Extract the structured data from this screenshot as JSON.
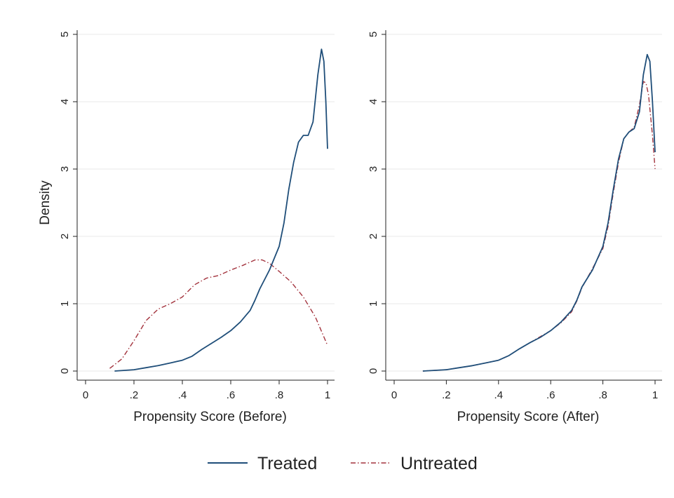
{
  "colors": {
    "treated": "#1f4e79",
    "untreated": "#a3333d",
    "grid": "#e8e8e8",
    "axis": "#222222"
  },
  "legend": {
    "placement": "bottom",
    "items": [
      {
        "label": "Treated",
        "style": "solid",
        "color": "#1f4e79"
      },
      {
        "label": "Untreated",
        "style": "dash-dot",
        "color": "#a3333d"
      }
    ]
  },
  "chart_data": [
    {
      "type": "line",
      "xlabel": "Propensity Score (Before)",
      "ylabel": "Density",
      "xlim": [
        0,
        1
      ],
      "ylim": [
        0,
        5
      ],
      "xticks": [
        {
          "v": 0,
          "label": "0"
        },
        {
          "v": 0.2,
          "label": ".2"
        },
        {
          "v": 0.4,
          "label": ".4"
        },
        {
          "v": 0.6,
          "label": ".6"
        },
        {
          "v": 0.8,
          "label": ".8"
        },
        {
          "v": 1,
          "label": "1"
        }
      ],
      "yticks": [
        {
          "v": 0,
          "label": "0"
        },
        {
          "v": 1,
          "label": "1"
        },
        {
          "v": 2,
          "label": "2"
        },
        {
          "v": 3,
          "label": "3"
        },
        {
          "v": 4,
          "label": "4"
        },
        {
          "v": 5,
          "label": "5"
        }
      ],
      "grid": "horizontal",
      "series": [
        {
          "name": "Treated",
          "style": "solid",
          "color": "#1f4e79",
          "points": [
            [
              0.12,
              0.0
            ],
            [
              0.2,
              0.02
            ],
            [
              0.25,
              0.05
            ],
            [
              0.3,
              0.08
            ],
            [
              0.35,
              0.12
            ],
            [
              0.4,
              0.16
            ],
            [
              0.44,
              0.22
            ],
            [
              0.48,
              0.32
            ],
            [
              0.52,
              0.41
            ],
            [
              0.56,
              0.5
            ],
            [
              0.6,
              0.6
            ],
            [
              0.64,
              0.73
            ],
            [
              0.68,
              0.9
            ],
            [
              0.7,
              1.05
            ],
            [
              0.72,
              1.22
            ],
            [
              0.76,
              1.5
            ],
            [
              0.8,
              1.85
            ],
            [
              0.82,
              2.2
            ],
            [
              0.84,
              2.7
            ],
            [
              0.86,
              3.1
            ],
            [
              0.88,
              3.4
            ],
            [
              0.9,
              3.5
            ],
            [
              0.92,
              3.5
            ],
            [
              0.94,
              3.7
            ],
            [
              0.96,
              4.4
            ],
            [
              0.975,
              4.78
            ],
            [
              0.985,
              4.6
            ],
            [
              0.993,
              4.0
            ],
            [
              1.0,
              3.3
            ]
          ]
        },
        {
          "name": "Untreated",
          "style": "dash-dot",
          "color": "#a3333d",
          "points": [
            [
              0.1,
              0.04
            ],
            [
              0.15,
              0.18
            ],
            [
              0.2,
              0.45
            ],
            [
              0.25,
              0.75
            ],
            [
              0.3,
              0.92
            ],
            [
              0.35,
              1.0
            ],
            [
              0.4,
              1.1
            ],
            [
              0.45,
              1.28
            ],
            [
              0.5,
              1.38
            ],
            [
              0.55,
              1.42
            ],
            [
              0.6,
              1.5
            ],
            [
              0.65,
              1.57
            ],
            [
              0.7,
              1.65
            ],
            [
              0.73,
              1.65
            ],
            [
              0.76,
              1.6
            ],
            [
              0.8,
              1.48
            ],
            [
              0.85,
              1.32
            ],
            [
              0.9,
              1.1
            ],
            [
              0.95,
              0.8
            ],
            [
              1.0,
              0.38
            ]
          ]
        }
      ]
    },
    {
      "type": "line",
      "xlabel": "Propensity Score (After)",
      "ylabel": "",
      "xlim": [
        0,
        1
      ],
      "ylim": [
        0,
        5
      ],
      "xticks": [
        {
          "v": 0,
          "label": "0"
        },
        {
          "v": 0.2,
          "label": ".2"
        },
        {
          "v": 0.4,
          "label": ".4"
        },
        {
          "v": 0.6,
          "label": ".6"
        },
        {
          "v": 0.8,
          "label": ".8"
        },
        {
          "v": 1,
          "label": "1"
        }
      ],
      "yticks": [
        {
          "v": 0,
          "label": "0"
        },
        {
          "v": 1,
          "label": "1"
        },
        {
          "v": 2,
          "label": "2"
        },
        {
          "v": 3,
          "label": "3"
        },
        {
          "v": 4,
          "label": "4"
        },
        {
          "v": 5,
          "label": "5"
        }
      ],
      "grid": "horizontal",
      "series": [
        {
          "name": "Treated",
          "style": "solid",
          "color": "#1f4e79",
          "points": [
            [
              0.11,
              0.0
            ],
            [
              0.2,
              0.02
            ],
            [
              0.25,
              0.05
            ],
            [
              0.3,
              0.08
            ],
            [
              0.35,
              0.12
            ],
            [
              0.4,
              0.16
            ],
            [
              0.44,
              0.23
            ],
            [
              0.48,
              0.33
            ],
            [
              0.52,
              0.42
            ],
            [
              0.56,
              0.5
            ],
            [
              0.6,
              0.6
            ],
            [
              0.64,
              0.73
            ],
            [
              0.68,
              0.9
            ],
            [
              0.7,
              1.05
            ],
            [
              0.72,
              1.25
            ],
            [
              0.76,
              1.5
            ],
            [
              0.8,
              1.85
            ],
            [
              0.82,
              2.2
            ],
            [
              0.84,
              2.7
            ],
            [
              0.86,
              3.15
            ],
            [
              0.88,
              3.45
            ],
            [
              0.9,
              3.55
            ],
            [
              0.92,
              3.6
            ],
            [
              0.94,
              3.85
            ],
            [
              0.955,
              4.4
            ],
            [
              0.97,
              4.7
            ],
            [
              0.98,
              4.6
            ],
            [
              0.99,
              4.0
            ],
            [
              1.0,
              3.25
            ]
          ]
        },
        {
          "name": "Untreated",
          "style": "dash-dot",
          "color": "#a3333d",
          "points": [
            [
              0.11,
              0.0
            ],
            [
              0.2,
              0.02
            ],
            [
              0.25,
              0.05
            ],
            [
              0.3,
              0.08
            ],
            [
              0.35,
              0.12
            ],
            [
              0.4,
              0.16
            ],
            [
              0.44,
              0.23
            ],
            [
              0.48,
              0.33
            ],
            [
              0.52,
              0.42
            ],
            [
              0.56,
              0.51
            ],
            [
              0.6,
              0.6
            ],
            [
              0.64,
              0.72
            ],
            [
              0.68,
              0.88
            ],
            [
              0.7,
              1.04
            ],
            [
              0.72,
              1.24
            ],
            [
              0.76,
              1.52
            ],
            [
              0.8,
              1.82
            ],
            [
              0.82,
              2.15
            ],
            [
              0.84,
              2.65
            ],
            [
              0.86,
              3.1
            ],
            [
              0.88,
              3.45
            ],
            [
              0.9,
              3.55
            ],
            [
              0.92,
              3.62
            ],
            [
              0.94,
              3.95
            ],
            [
              0.955,
              4.3
            ],
            [
              0.965,
              4.28
            ],
            [
              0.975,
              4.1
            ],
            [
              0.99,
              3.5
            ],
            [
              1.0,
              3.0
            ]
          ]
        }
      ]
    }
  ]
}
